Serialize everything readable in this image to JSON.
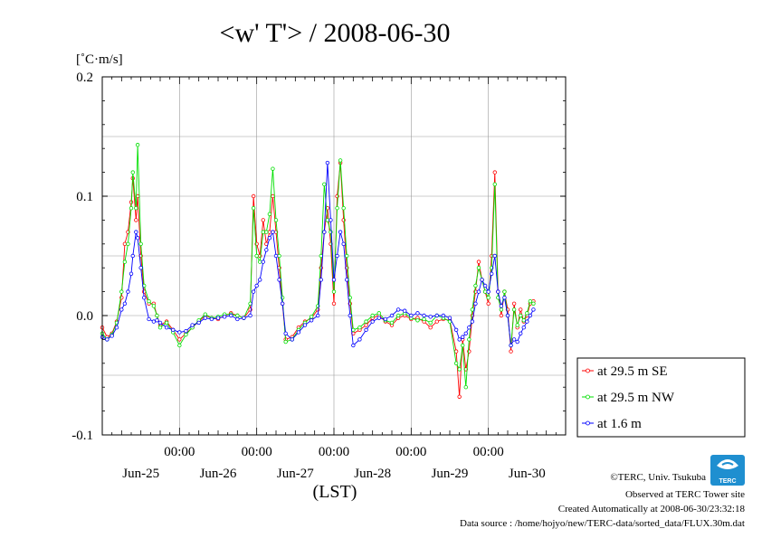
{
  "chart_data": {
    "type": "line",
    "title": "<w' T'> / 2008-06-30",
    "ylabel": "[˚C·m/s]",
    "xlabel": "(LST)",
    "ylim": [
      -0.1,
      0.2
    ],
    "y_ticks": [
      "0.2",
      "0.1",
      "0.0",
      "-0.1"
    ],
    "y_tick_values": [
      0.2,
      0.1,
      0.0,
      -0.1
    ],
    "x_time_ticks": [
      "00:00",
      "00:00",
      "00:00",
      "00:00",
      "00:00"
    ],
    "x_day_labels": [
      "Jun-25",
      "Jun-26",
      "Jun-27",
      "Jun-28",
      "Jun-29",
      "Jun-30"
    ],
    "x_unit": "hours since Jun-25 00:00",
    "xlim": [
      0,
      144
    ],
    "grid": true,
    "legend_position": "right",
    "series": [
      {
        "name": "at 29.5 m SE",
        "color": "#ff0000",
        "points": [
          [
            0,
            -0.01
          ],
          [
            1.5,
            -0.018
          ],
          [
            3,
            -0.015
          ],
          [
            4.5,
            -0.005
          ],
          [
            6,
            0.015
          ],
          [
            7,
            0.06
          ],
          [
            8,
            0.07
          ],
          [
            9,
            0.095
          ],
          [
            9.5,
            0.115
          ],
          [
            10.5,
            0.08
          ],
          [
            11,
            0.1
          ],
          [
            12,
            0.05
          ],
          [
            13,
            0.02
          ],
          [
            14.5,
            0.01
          ],
          [
            16,
            0.01
          ],
          [
            17,
            0.0
          ],
          [
            18,
            -0.008
          ],
          [
            20,
            -0.005
          ],
          [
            22,
            -0.012
          ],
          [
            24,
            -0.02
          ],
          [
            26,
            -0.015
          ],
          [
            28,
            -0.01
          ],
          [
            30,
            -0.005
          ],
          [
            32,
            0.0
          ],
          [
            34,
            -0.002
          ],
          [
            36,
            -0.003
          ],
          [
            38,
            0.0
          ],
          [
            40,
            0.002
          ],
          [
            42,
            0.0
          ],
          [
            44,
            -0.002
          ],
          [
            46,
            0.005
          ],
          [
            47,
            0.1
          ],
          [
            48,
            0.06
          ],
          [
            49,
            0.05
          ],
          [
            50,
            0.08
          ],
          [
            51,
            0.06
          ],
          [
            52,
            0.07
          ],
          [
            53,
            0.1
          ],
          [
            54,
            0.07
          ],
          [
            55,
            0.04
          ],
          [
            56,
            0.01
          ],
          [
            57,
            -0.02
          ],
          [
            59,
            -0.018
          ],
          [
            61,
            -0.01
          ],
          [
            63,
            -0.005
          ],
          [
            65,
            -0.002
          ],
          [
            67,
            0.005
          ],
          [
            68,
            0.04
          ],
          [
            69,
            0.07
          ],
          [
            70,
            0.09
          ],
          [
            71,
            0.06
          ],
          [
            72,
            0.01
          ],
          [
            73,
            0.1
          ],
          [
            74,
            0.128
          ],
          [
            75,
            0.08
          ],
          [
            76,
            0.04
          ],
          [
            77,
            0.01
          ],
          [
            78,
            -0.015
          ],
          [
            80,
            -0.012
          ],
          [
            82,
            -0.008
          ],
          [
            84,
            -0.002
          ],
          [
            86,
            0.0
          ],
          [
            88,
            -0.005
          ],
          [
            90,
            -0.008
          ],
          [
            92,
            -0.002
          ],
          [
            94,
            0.0
          ],
          [
            96,
            -0.003
          ],
          [
            98,
            -0.002
          ],
          [
            100,
            -0.005
          ],
          [
            102,
            -0.01
          ],
          [
            104,
            -0.005
          ],
          [
            106,
            -0.003
          ],
          [
            108,
            -0.004
          ],
          [
            110,
            -0.03
          ],
          [
            111,
            -0.068
          ],
          [
            112,
            -0.02
          ],
          [
            113,
            -0.045
          ],
          [
            114,
            -0.03
          ],
          [
            115,
            0.0
          ],
          [
            116,
            0.02
          ],
          [
            117,
            0.045
          ],
          [
            118,
            0.03
          ],
          [
            119,
            0.02
          ],
          [
            120,
            0.01
          ],
          [
            121,
            0.05
          ],
          [
            122,
            0.12
          ],
          [
            123,
            0.02
          ],
          [
            124,
            0.0
          ],
          [
            125,
            0.02
          ],
          [
            126,
            0.005
          ],
          [
            127,
            -0.03
          ],
          [
            128,
            0.01
          ],
          [
            129,
            -0.01
          ],
          [
            130,
            0.005
          ],
          [
            131,
            -0.005
          ],
          [
            132,
            0.0
          ],
          [
            133,
            0.01
          ],
          [
            134,
            0.012
          ]
        ]
      },
      {
        "name": "at 29.5 m NW",
        "color": "#00e000",
        "points": [
          [
            0,
            -0.015
          ],
          [
            1.5,
            -0.02
          ],
          [
            3,
            -0.016
          ],
          [
            4.5,
            -0.006
          ],
          [
            6,
            0.02
          ],
          [
            7,
            0.045
          ],
          [
            8,
            0.06
          ],
          [
            9,
            0.09
          ],
          [
            9.5,
            0.12
          ],
          [
            10.5,
            0.09
          ],
          [
            11,
            0.143
          ],
          [
            12,
            0.06
          ],
          [
            13,
            0.025
          ],
          [
            14.5,
            0.012
          ],
          [
            16,
            0.008
          ],
          [
            17,
            0.0
          ],
          [
            18,
            -0.01
          ],
          [
            20,
            -0.006
          ],
          [
            22,
            -0.014
          ],
          [
            24,
            -0.025
          ],
          [
            26,
            -0.016
          ],
          [
            28,
            -0.01
          ],
          [
            30,
            -0.004
          ],
          [
            32,
            0.001
          ],
          [
            34,
            -0.002
          ],
          [
            36,
            -0.001
          ],
          [
            38,
            0.001
          ],
          [
            40,
            0.001
          ],
          [
            42,
            0.0
          ],
          [
            44,
            -0.002
          ],
          [
            46,
            0.01
          ],
          [
            47,
            0.09
          ],
          [
            48,
            0.05
          ],
          [
            49,
            0.045
          ],
          [
            50,
            0.07
          ],
          [
            51,
            0.07
          ],
          [
            52,
            0.085
          ],
          [
            53,
            0.123
          ],
          [
            54,
            0.08
          ],
          [
            55,
            0.05
          ],
          [
            56,
            0.015
          ],
          [
            57,
            -0.022
          ],
          [
            59,
            -0.02
          ],
          [
            61,
            -0.012
          ],
          [
            63,
            -0.006
          ],
          [
            65,
            -0.001
          ],
          [
            67,
            0.008
          ],
          [
            68,
            0.05
          ],
          [
            69,
            0.11
          ],
          [
            70,
            0.08
          ],
          [
            71,
            0.07
          ],
          [
            72,
            0.02
          ],
          [
            73,
            0.09
          ],
          [
            74,
            0.13
          ],
          [
            75,
            0.09
          ],
          [
            76,
            0.05
          ],
          [
            77,
            0.015
          ],
          [
            78,
            -0.012
          ],
          [
            80,
            -0.01
          ],
          [
            82,
            -0.005
          ],
          [
            84,
            0.0
          ],
          [
            86,
            0.002
          ],
          [
            88,
            -0.004
          ],
          [
            90,
            -0.006
          ],
          [
            92,
            0.0
          ],
          [
            94,
            0.002
          ],
          [
            96,
            -0.002
          ],
          [
            98,
            -0.004
          ],
          [
            100,
            -0.003
          ],
          [
            102,
            -0.006
          ],
          [
            104,
            0.0
          ],
          [
            106,
            -0.002
          ],
          [
            108,
            -0.005
          ],
          [
            110,
            -0.04
          ],
          [
            111,
            -0.045
          ],
          [
            112,
            -0.025
          ],
          [
            113,
            -0.06
          ],
          [
            114,
            -0.02
          ],
          [
            115,
            0.005
          ],
          [
            116,
            0.025
          ],
          [
            117,
            0.04
          ],
          [
            118,
            0.03
          ],
          [
            119,
            0.02
          ],
          [
            120,
            0.015
          ],
          [
            121,
            0.04
          ],
          [
            122,
            0.11
          ],
          [
            123,
            0.015
          ],
          [
            124,
            0.005
          ],
          [
            125,
            0.02
          ],
          [
            126,
            0.0
          ],
          [
            127,
            -0.025
          ],
          [
            128,
            0.005
          ],
          [
            129,
            -0.008
          ],
          [
            130,
            0.0
          ],
          [
            131,
            -0.004
          ],
          [
            132,
            0.002
          ],
          [
            133,
            0.012
          ],
          [
            134,
            0.01
          ]
        ]
      },
      {
        "name": "at 1.6 m",
        "color": "#0000ff",
        "points": [
          [
            0,
            -0.018
          ],
          [
            1.5,
            -0.02
          ],
          [
            3,
            -0.017
          ],
          [
            4.5,
            -0.01
          ],
          [
            6,
            0.005
          ],
          [
            7,
            0.01
          ],
          [
            8,
            0.02
          ],
          [
            9,
            0.035
          ],
          [
            9.5,
            0.05
          ],
          [
            10.5,
            0.07
          ],
          [
            11,
            0.065
          ],
          [
            12,
            0.04
          ],
          [
            13,
            0.015
          ],
          [
            14.5,
            -0.003
          ],
          [
            16,
            -0.005
          ],
          [
            17,
            -0.004
          ],
          [
            18,
            -0.006
          ],
          [
            20,
            -0.01
          ],
          [
            22,
            -0.012
          ],
          [
            24,
            -0.014
          ],
          [
            26,
            -0.013
          ],
          [
            28,
            -0.008
          ],
          [
            30,
            -0.006
          ],
          [
            32,
            -0.002
          ],
          [
            34,
            -0.003
          ],
          [
            36,
            -0.002
          ],
          [
            38,
            -0.001
          ],
          [
            40,
            0.0
          ],
          [
            42,
            -0.003
          ],
          [
            44,
            -0.002
          ],
          [
            46,
            0.0
          ],
          [
            47,
            0.02
          ],
          [
            48,
            0.025
          ],
          [
            49,
            0.03
          ],
          [
            50,
            0.045
          ],
          [
            51,
            0.055
          ],
          [
            52,
            0.065
          ],
          [
            53,
            0.07
          ],
          [
            54,
            0.05
          ],
          [
            55,
            0.03
          ],
          [
            56,
            0.01
          ],
          [
            57,
            -0.015
          ],
          [
            59,
            -0.02
          ],
          [
            61,
            -0.014
          ],
          [
            63,
            -0.008
          ],
          [
            65,
            -0.004
          ],
          [
            67,
            0.0
          ],
          [
            68,
            0.03
          ],
          [
            69,
            0.07
          ],
          [
            70,
            0.128
          ],
          [
            71,
            0.08
          ],
          [
            72,
            0.03
          ],
          [
            73,
            0.05
          ],
          [
            74,
            0.07
          ],
          [
            75,
            0.06
          ],
          [
            76,
            0.03
          ],
          [
            77,
            0.0
          ],
          [
            78,
            -0.025
          ],
          [
            80,
            -0.02
          ],
          [
            82,
            -0.012
          ],
          [
            84,
            -0.005
          ],
          [
            86,
            -0.002
          ],
          [
            88,
            -0.003
          ],
          [
            90,
            0.0
          ],
          [
            92,
            0.005
          ],
          [
            94,
            0.004
          ],
          [
            96,
            0.0
          ],
          [
            98,
            0.002
          ],
          [
            100,
            0.0
          ],
          [
            102,
            -0.001
          ],
          [
            104,
            0.0
          ],
          [
            106,
            0.0
          ],
          [
            108,
            -0.002
          ],
          [
            110,
            -0.012
          ],
          [
            111,
            -0.02
          ],
          [
            112,
            -0.018
          ],
          [
            113,
            -0.015
          ],
          [
            114,
            -0.01
          ],
          [
            115,
            -0.005
          ],
          [
            116,
            0.01
          ],
          [
            117,
            0.02
          ],
          [
            118,
            0.03
          ],
          [
            119,
            0.025
          ],
          [
            120,
            0.02
          ],
          [
            121,
            0.035
          ],
          [
            122,
            0.05
          ],
          [
            123,
            0.02
          ],
          [
            124,
            0.008
          ],
          [
            125,
            0.015
          ],
          [
            126,
            0.0
          ],
          [
            127,
            -0.025
          ],
          [
            128,
            -0.02
          ],
          [
            129,
            -0.022
          ],
          [
            130,
            -0.015
          ],
          [
            131,
            -0.01
          ],
          [
            132,
            -0.005
          ],
          [
            133,
            0.0
          ],
          [
            134,
            0.005
          ]
        ]
      }
    ]
  },
  "footer": {
    "copyright": "©TERC, Univ. Tsukuba",
    "observed": "Observed at TERC Tower site",
    "created": "Created Automatically at 2008-06-30/23:32:18",
    "source": "Data source : /home/hojyo/new/TERC-data/sorted_data/FLUX.30m.dat",
    "logo_text": "TERC"
  }
}
